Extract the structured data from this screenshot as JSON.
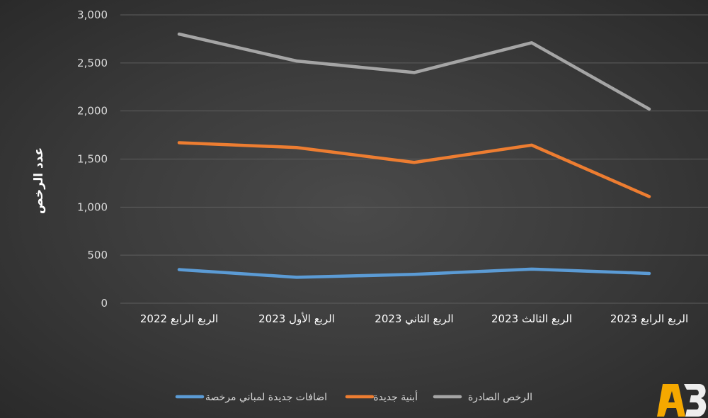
{
  "chart_data": {
    "type": "line",
    "categories": [
      "الربع الرابع 2022",
      "الربع الأول 2023",
      "الربع الثاني 2023",
      "الربع الثالث 2023",
      "الربع الرابع 2023"
    ],
    "series": [
      {
        "name": "الرخص الصادرة",
        "color": "#a5a5a5",
        "values": [
          2800,
          2520,
          2400,
          2710,
          2020
        ]
      },
      {
        "name": "أبنية جديدة",
        "color": "#ed7d31",
        "values": [
          1670,
          1620,
          1465,
          1645,
          1110
        ]
      },
      {
        "name": "اضافات جديدة لمباني مرخصة",
        "color": "#5b9bd5",
        "values": [
          350,
          270,
          300,
          355,
          310
        ]
      }
    ],
    "ylabel": "عدد الرخص",
    "ylim": [
      0,
      3000
    ],
    "yticks": [
      0,
      500,
      1000,
      1500,
      2000,
      2500,
      3000
    ],
    "ytick_labels": [
      "0",
      "500",
      "1,000",
      "1,500",
      "2,000",
      "2,500",
      "3,000"
    ],
    "grid": true,
    "legend_position": "bottom"
  },
  "logo": {
    "text": "AB",
    "colors": [
      "#f5a800",
      "#ffffff"
    ]
  }
}
